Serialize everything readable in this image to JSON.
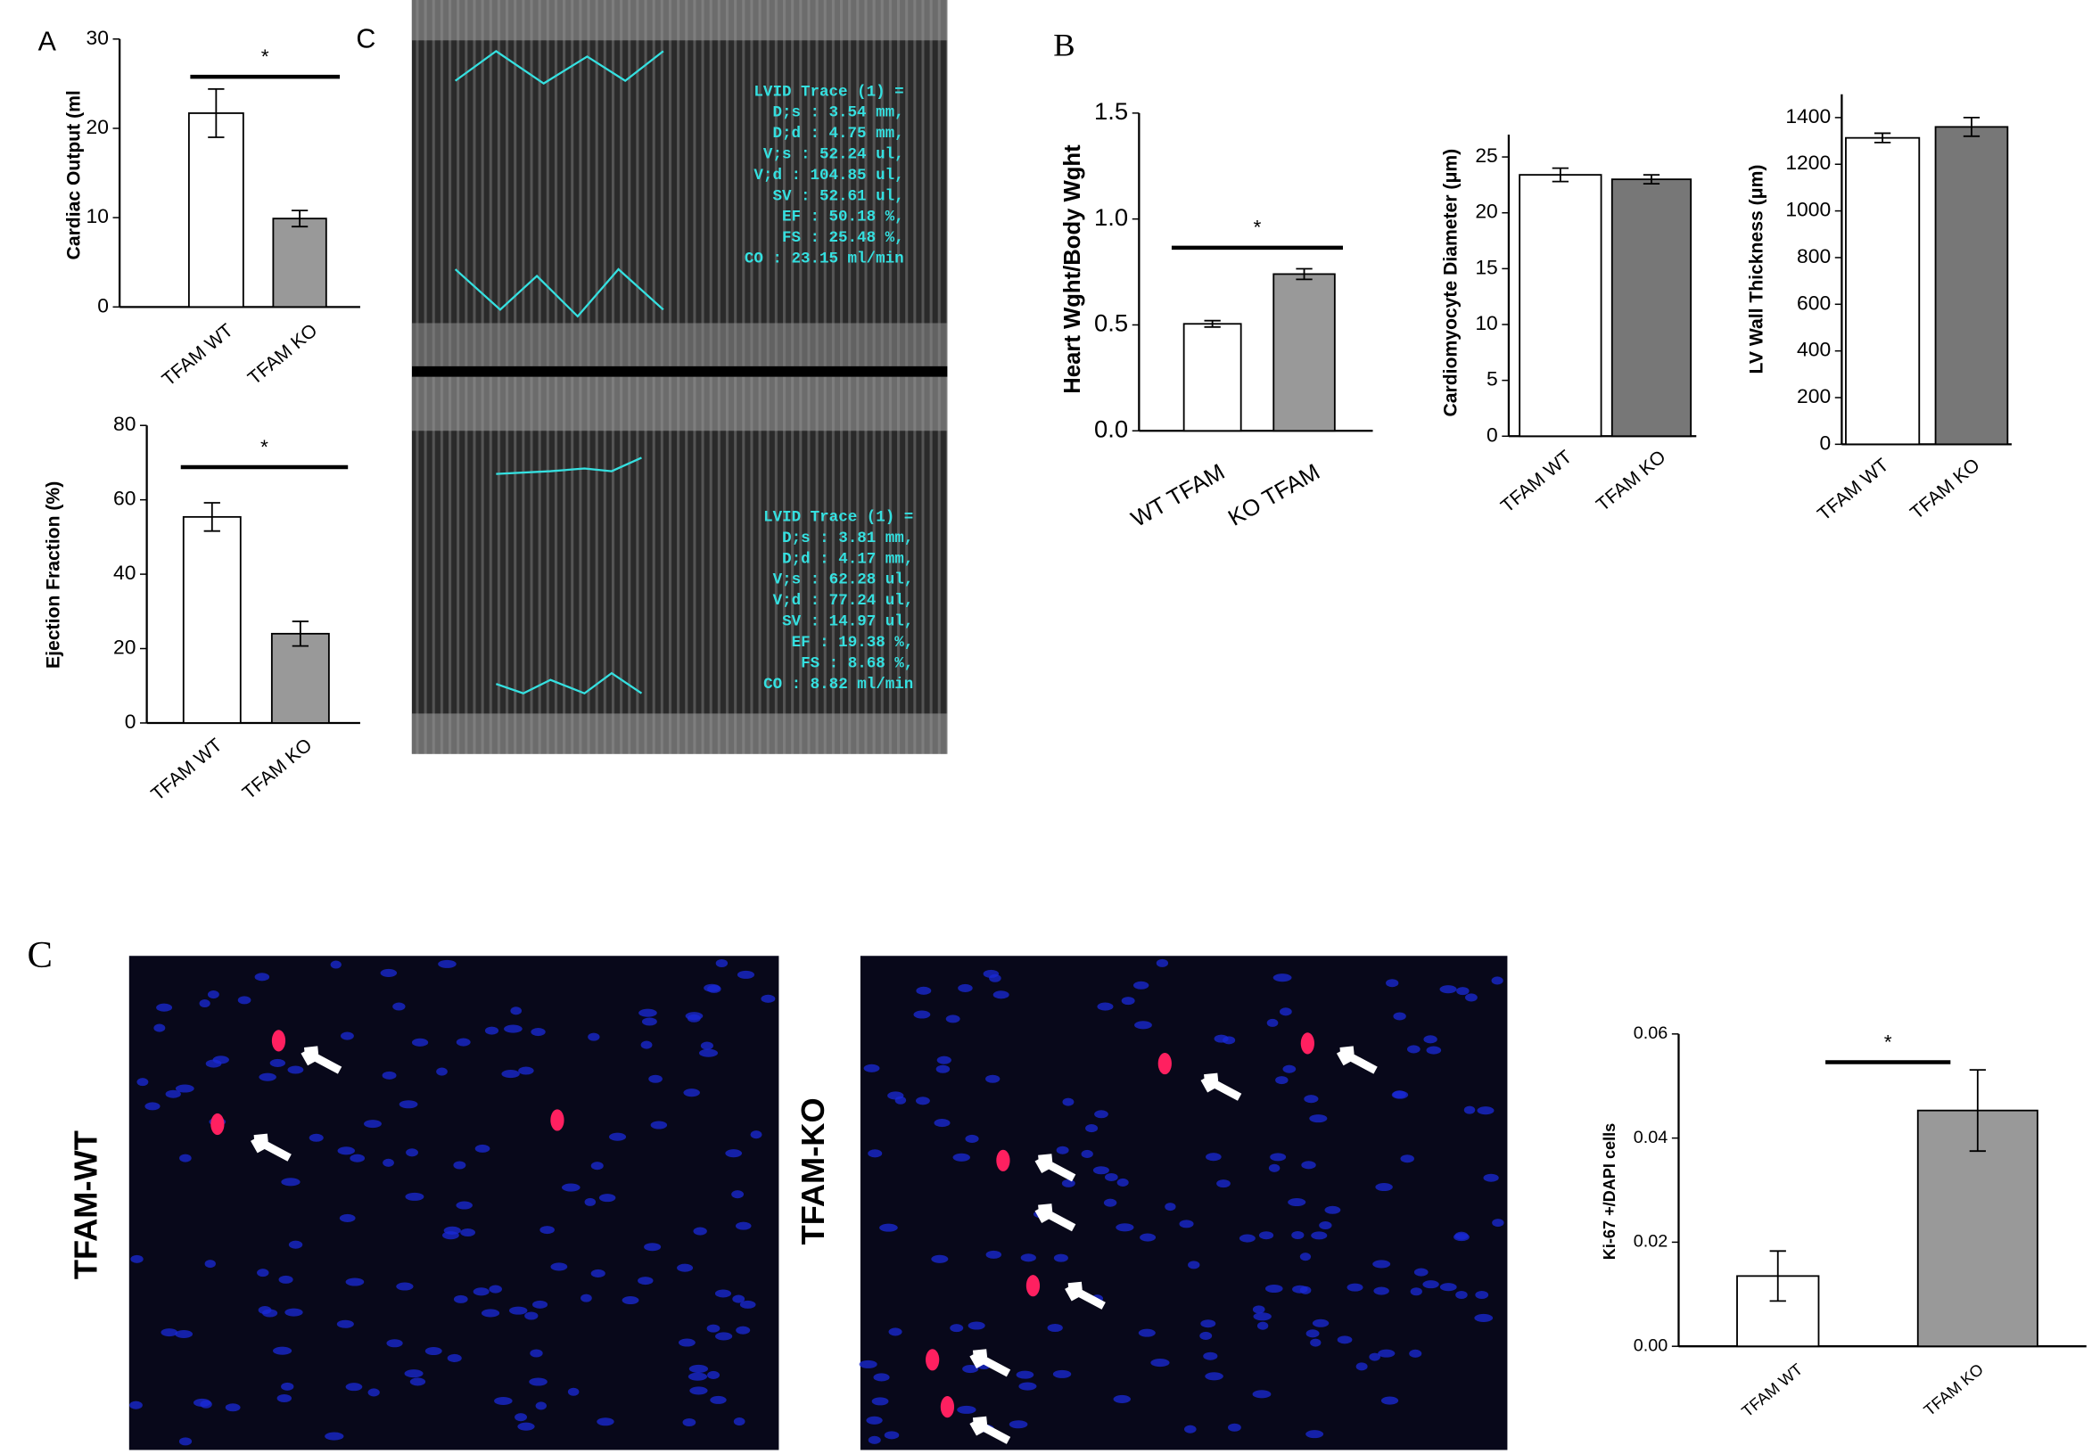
{
  "panel_labels": [
    "A",
    "C",
    "B",
    "C"
  ],
  "chart_data": [
    {
      "type": "bar",
      "y_label": "Cardiac Output (ml",
      "categories": [
        "TFAM WT",
        "TFAM KO"
      ],
      "values": [
        21.7,
        9.9
      ],
      "errors": [
        2.7,
        0.9
      ],
      "colors": [
        "#ffffff",
        "#999999"
      ],
      "ylim": [
        0,
        30
      ],
      "yticks": [
        0,
        10,
        20,
        30
      ],
      "significance": "*"
    },
    {
      "type": "bar",
      "y_label": "Ejection  Fraction (%)",
      "categories": [
        "TFAM WT",
        "TFAM KO"
      ],
      "values": [
        55.4,
        24
      ],
      "errors": [
        3.8,
        3.3
      ],
      "colors": [
        "#ffffff",
        "#999999"
      ],
      "ylim": [
        0,
        80
      ],
      "yticks": [
        0,
        20,
        40,
        60,
        80
      ],
      "significance": "*"
    },
    {
      "type": "bar",
      "y_label": "Heart Wght/Body Wght",
      "categories": [
        "WT TFAM",
        "KO TFAM"
      ],
      "values": [
        0.505,
        0.74
      ],
      "errors": [
        0.015,
        0.025
      ],
      "colors": [
        "#ffffff",
        "#999999"
      ],
      "ylim": [
        0,
        1.5
      ],
      "yticks": [
        {
          "value": 0,
          "label": "0.0"
        },
        {
          "value": 0.5,
          "label": "0.5"
        },
        {
          "value": 1,
          "label": "1.0"
        },
        {
          "value": 1.5,
          "label": "1.5"
        }
      ],
      "significance": "*"
    },
    {
      "type": "bar",
      "y_label": "Cardiomyocyte Diameter (μm)",
      "categories": [
        "TFAM WT",
        "TFAM KO"
      ],
      "values": [
        23.4,
        23.0
      ],
      "errors": [
        0.6,
        0.4
      ],
      "colors": [
        "#ffffff",
        "#777777"
      ],
      "ylim": [
        0,
        27
      ],
      "yticks": [
        0,
        5,
        10,
        15,
        20,
        25
      ]
    },
    {
      "type": "bar",
      "y_label": "LV Wall Thickness (μm)",
      "categories": [
        "TFAM WT",
        "TFAM KO"
      ],
      "values": [
        1313,
        1360
      ],
      "errors": [
        20,
        40
      ],
      "colors": [
        "#ffffff",
        "#777777"
      ],
      "ylim": [
        0,
        1500
      ],
      "yticks": [
        0,
        200,
        400,
        600,
        800,
        1000,
        1200,
        1400
      ]
    },
    {
      "type": "bar",
      "y_label": "Ki-67 +/DAPI cells",
      "categories": [
        "TFAM WT",
        "TFAM KO"
      ],
      "values": [
        0.0135,
        0.0453
      ],
      "errors": [
        0.0048,
        0.0078
      ],
      "colors": [
        "#ffffff",
        "#999999"
      ],
      "ylim": [
        0,
        0.06
      ],
      "yticks": [
        {
          "value": 0,
          "label": "0.00"
        },
        {
          "value": 0.02,
          "label": "0.02"
        },
        {
          "value": 0.04,
          "label": "0.04"
        },
        {
          "value": 0.06,
          "label": "0.06"
        }
      ],
      "significance": "*"
    }
  ],
  "echo": [
    {
      "lines": [
        "LVID Trace (1) =",
        "D;s : 3.54 mm,",
        "D;d : 4.75 mm,",
        "V;s : 52.24 ul,",
        "V;d : 104.85 ul,",
        "SV : 52.61 ul,",
        "EF : 50.18 %,",
        "FS : 25.48 %,",
        "CO : 23.15 ml/min"
      ]
    },
    {
      "lines": [
        "LVID Trace (1) =",
        "D;s : 3.81 mm,",
        "D;d : 4.17 mm,",
        "V;s : 62.28 ul,",
        "V;d : 77.24 ul,",
        "SV : 14.97 ul,",
        "EF : 19.38 %,",
        "FS : 8.68 %,",
        "CO : 8.82 ml/min"
      ]
    }
  ],
  "micrographs": [
    {
      "label": "TFAM-WT"
    },
    {
      "label": "TFAM-KO"
    }
  ]
}
